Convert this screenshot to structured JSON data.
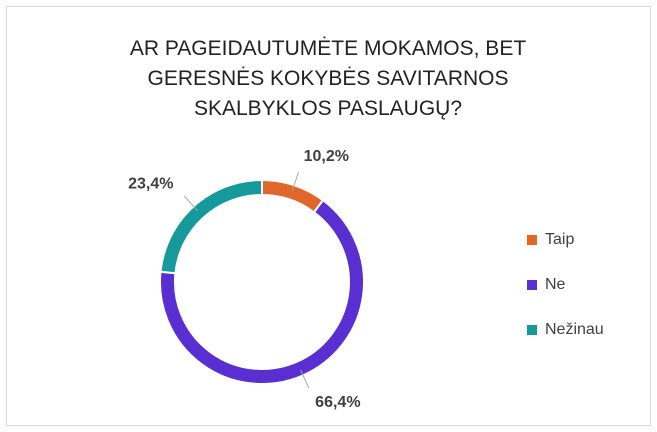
{
  "chart_data": {
    "type": "donut",
    "title": "AR PAGEIDAUTUMĖTE MOKAMOS, BET GERESNĖS KOKYBĖS SAVITARNOS SKALBYKLOS PASLAUGŲ?",
    "categories": [
      "Taip",
      "Ne",
      "Nežinau"
    ],
    "values": [
      10.2,
      66.4,
      23.4
    ],
    "value_labels": [
      "10,2%",
      "66,4%",
      "23,4%"
    ],
    "colors": [
      "#e0662a",
      "#5a2fd1",
      "#15999b"
    ],
    "legend": "right"
  }
}
